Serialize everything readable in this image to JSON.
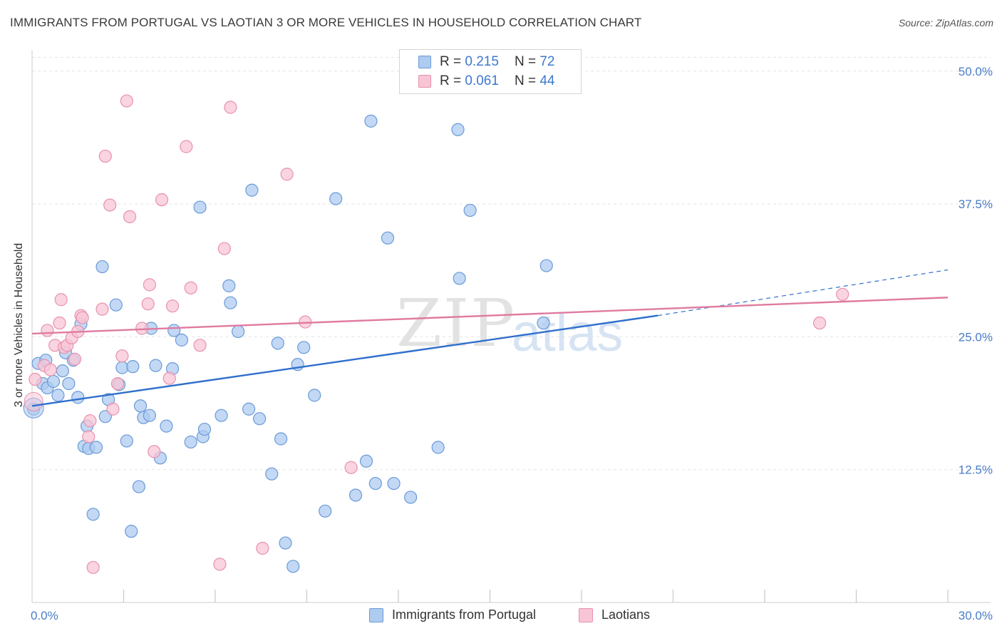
{
  "title": "IMMIGRANTS FROM PORTUGAL VS LAOTIAN 3 OR MORE VEHICLES IN HOUSEHOLD CORRELATION CHART",
  "source": "Source: ZipAtlas.com",
  "watermark": {
    "left": "ZIP",
    "right": "atlas"
  },
  "legend": {
    "r_label": "R =",
    "n_label": "N =",
    "series": [
      {
        "name": "Immigrants from Portugal",
        "r": "0.215",
        "n": "72",
        "color": "#aecbf0",
        "stroke": "#6a9ad8"
      },
      {
        "name": "Laotians",
        "r": "0.061",
        "n": "44",
        "color": "#f8c5d5",
        "stroke": "#e891ad"
      }
    ]
  },
  "chart_data": {
    "type": "scatter",
    "title": "IMMIGRANTS FROM PORTUGAL VS LAOTIAN 3 OR MORE VEHICLES IN HOUSEHOLD CORRELATION CHART",
    "xlabel": "",
    "ylabel": "3 or more Vehicles in Household",
    "xlim": [
      0,
      30
    ],
    "ylim": [
      0,
      52
    ],
    "x_tick_labels": [
      "0.0%",
      "30.0%"
    ],
    "y_ticks": [
      12.5,
      25.0,
      37.5,
      50.0
    ],
    "y_tick_labels": [
      "12.5%",
      "25.0%",
      "37.5%",
      "50.0%"
    ],
    "grid": true,
    "legend_position": "top-center",
    "series": [
      {
        "name": "Immigrants from Portugal",
        "color": "#aecbf0",
        "stroke": "#6a9ad8",
        "trend": {
          "x0": 0,
          "y0": 18.5,
          "x1": 20.5,
          "y1": 27.0,
          "dash_to_x": 30,
          "dash_to_y": 31.3,
          "color": "#2f6fcd"
        },
        "points": [
          [
            0.2,
            22.5
          ],
          [
            0.35,
            20.6
          ],
          [
            0.45,
            22.8
          ],
          [
            0.5,
            20.2
          ],
          [
            0.7,
            20.8
          ],
          [
            0.85,
            19.5
          ],
          [
            1.0,
            21.8
          ],
          [
            1.1,
            23.5
          ],
          [
            1.2,
            20.6
          ],
          [
            1.35,
            22.8
          ],
          [
            1.5,
            19.3
          ],
          [
            1.6,
            26.2
          ],
          [
            1.7,
            14.7
          ],
          [
            1.8,
            16.6
          ],
          [
            1.85,
            14.5
          ],
          [
            2.1,
            14.6
          ],
          [
            2.0,
            8.3
          ],
          [
            2.3,
            31.6
          ],
          [
            2.4,
            17.5
          ],
          [
            2.5,
            19.1
          ],
          [
            2.75,
            28.0
          ],
          [
            2.85,
            20.5
          ],
          [
            2.95,
            22.1
          ],
          [
            3.1,
            15.2
          ],
          [
            3.25,
            6.7
          ],
          [
            3.3,
            22.2
          ],
          [
            3.5,
            10.9
          ],
          [
            3.55,
            18.5
          ],
          [
            3.65,
            17.4
          ],
          [
            3.85,
            17.6
          ],
          [
            3.9,
            25.8
          ],
          [
            4.05,
            22.3
          ],
          [
            4.2,
            13.6
          ],
          [
            4.4,
            16.6
          ],
          [
            4.6,
            22.0
          ],
          [
            4.65,
            25.6
          ],
          [
            4.9,
            24.7
          ],
          [
            5.2,
            15.1
          ],
          [
            5.5,
            37.2
          ],
          [
            5.6,
            15.6
          ],
          [
            5.65,
            16.3
          ],
          [
            6.2,
            17.6
          ],
          [
            6.45,
            29.8
          ],
          [
            6.5,
            28.2
          ],
          [
            6.75,
            25.5
          ],
          [
            7.1,
            18.2
          ],
          [
            7.2,
            38.8
          ],
          [
            7.45,
            17.3
          ],
          [
            7.85,
            12.1
          ],
          [
            8.05,
            24.4
          ],
          [
            8.15,
            15.4
          ],
          [
            8.3,
            5.6
          ],
          [
            8.55,
            3.4
          ],
          [
            8.7,
            22.4
          ],
          [
            8.9,
            24.0
          ],
          [
            9.25,
            19.5
          ],
          [
            9.6,
            8.6
          ],
          [
            9.95,
            38.0
          ],
          [
            10.6,
            10.1
          ],
          [
            10.95,
            13.3
          ],
          [
            11.1,
            45.3
          ],
          [
            11.25,
            11.2
          ],
          [
            11.65,
            34.3
          ],
          [
            11.85,
            11.2
          ],
          [
            12.4,
            9.9
          ],
          [
            13.3,
            14.6
          ],
          [
            13.95,
            44.5
          ],
          [
            14.35,
            36.9
          ],
          [
            14.0,
            30.5
          ],
          [
            16.75,
            26.3
          ],
          [
            16.85,
            31.7
          ],
          [
            0.05,
            18.2
          ]
        ]
      },
      {
        "name": "Laotians",
        "color": "#f8c5d5",
        "stroke": "#e891ad",
        "trend": {
          "x0": 0,
          "y0": 25.3,
          "x1": 30,
          "y1": 28.7,
          "color": "#e07aa0"
        },
        "points": [
          [
            0.1,
            21.0
          ],
          [
            0.4,
            22.3
          ],
          [
            0.5,
            25.6
          ],
          [
            0.6,
            21.9
          ],
          [
            0.75,
            24.2
          ],
          [
            0.9,
            26.3
          ],
          [
            0.95,
            28.5
          ],
          [
            1.05,
            24.0
          ],
          [
            1.15,
            24.2
          ],
          [
            1.3,
            24.9
          ],
          [
            1.4,
            22.9
          ],
          [
            1.5,
            25.5
          ],
          [
            1.6,
            27.0
          ],
          [
            1.65,
            26.8
          ],
          [
            1.85,
            15.6
          ],
          [
            1.9,
            17.1
          ],
          [
            2.0,
            3.3
          ],
          [
            2.3,
            27.6
          ],
          [
            2.4,
            42.0
          ],
          [
            2.55,
            37.4
          ],
          [
            2.65,
            18.2
          ],
          [
            2.8,
            20.6
          ],
          [
            2.95,
            23.2
          ],
          [
            3.1,
            47.2
          ],
          [
            3.2,
            36.3
          ],
          [
            3.6,
            25.8
          ],
          [
            3.8,
            28.1
          ],
          [
            3.85,
            29.9
          ],
          [
            4.0,
            14.2
          ],
          [
            4.25,
            37.9
          ],
          [
            4.5,
            21.1
          ],
          [
            4.6,
            27.9
          ],
          [
            5.05,
            42.9
          ],
          [
            5.2,
            29.6
          ],
          [
            5.5,
            24.2
          ],
          [
            6.15,
            3.6
          ],
          [
            6.3,
            33.3
          ],
          [
            6.5,
            46.6
          ],
          [
            7.55,
            5.1
          ],
          [
            8.35,
            40.3
          ],
          [
            8.95,
            26.4
          ],
          [
            10.45,
            12.7
          ],
          [
            25.8,
            26.3
          ],
          [
            26.55,
            29.0
          ]
        ]
      }
    ]
  }
}
